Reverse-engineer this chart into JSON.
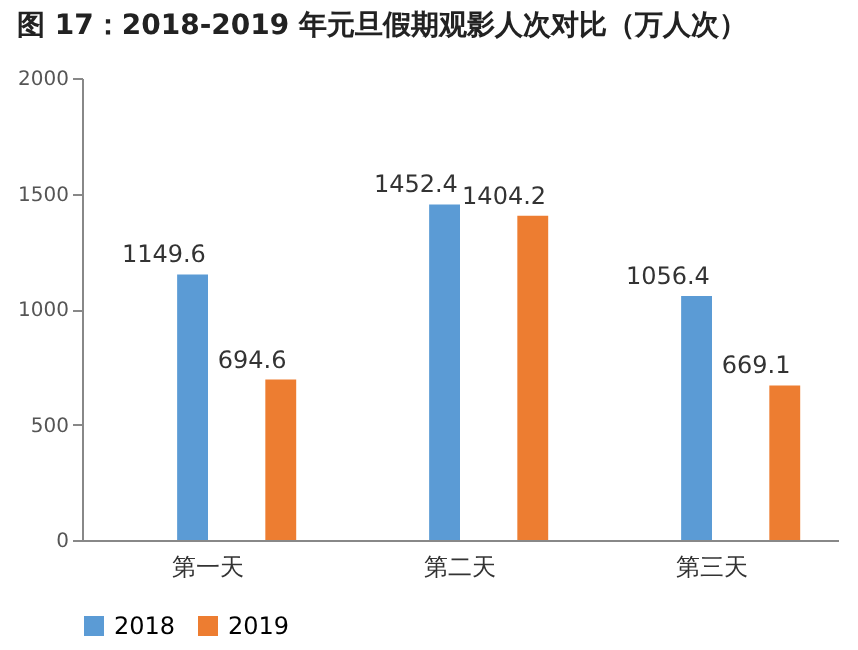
{
  "chart_data": {
    "type": "bar",
    "title": "图 17：2018-2019 年元旦假期观影人次对比（万人次）",
    "categories": [
      "第一天",
      "第二天",
      "第三天"
    ],
    "series": [
      {
        "name": "2018",
        "color": "#5b9bd5",
        "values": [
          1149.6,
          1452.4,
          1056.4
        ]
      },
      {
        "name": "2019",
        "color": "#ed7d31",
        "values": [
          694.6,
          1404.2,
          669.1
        ]
      }
    ],
    "ylim": [
      0,
      2000
    ],
    "yticks": [
      0,
      500,
      1000,
      1500,
      2000
    ],
    "grid": false,
    "legend": "bottom",
    "data_labels": true
  }
}
